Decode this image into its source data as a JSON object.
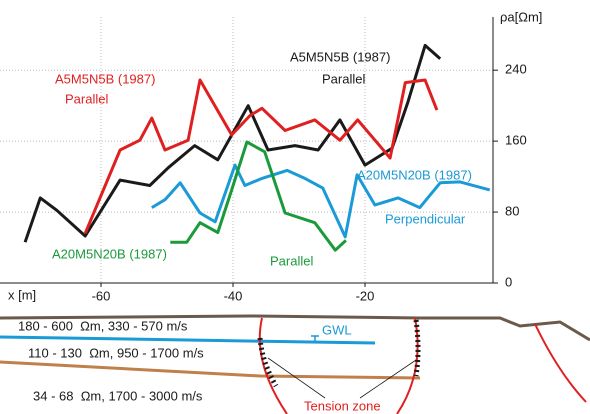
{
  "chart_data": {
    "type": "line",
    "x_label": "x [m]",
    "y_label": "ρa[Ωm]",
    "xlim": [
      -75,
      0
    ],
    "xticks": [
      -60,
      -40,
      -20
    ],
    "ylim": [
      0,
      300
    ],
    "yticks": [
      0,
      80,
      160,
      240
    ],
    "grid": true,
    "series": [
      {
        "name": "A5M5N5B (1987)",
        "note": "Parallel",
        "color": "#1a1a1a",
        "x": [
          -71.5,
          -69.2,
          -66.7,
          -62.4,
          -57.1,
          -52.6,
          -49.8,
          -45.8,
          -42.3,
          -37.7,
          -34.7,
          -30.6,
          -27.1,
          -23.8,
          -20,
          -15.9,
          -13.5,
          -10.9,
          -8.6
        ],
        "values": [
          46,
          96,
          82,
          53,
          116,
          110,
          130,
          155,
          139,
          200,
          150,
          155,
          150,
          184,
          133,
          152,
          204,
          268,
          253
        ]
      },
      {
        "name": "A5M5N5B (1987)",
        "note": "Parallel",
        "color": "#e02020",
        "x": [
          -62.4,
          -57.1,
          -54.1,
          -52.3,
          -50.3,
          -46.8,
          -45,
          -40.2,
          -37.4,
          -35.6,
          -32.1,
          -27.6,
          -23.8,
          -21.1,
          -16.2,
          -13.9,
          -10.9,
          -9.1
        ],
        "values": [
          56,
          150,
          161,
          186,
          150,
          161,
          229,
          167,
          189,
          197,
          172,
          184,
          161,
          184,
          141,
          226,
          229,
          195
        ]
      },
      {
        "name": "A20M5N20B (1987)",
        "note": "Perpendicular",
        "color": "#1a9ad6",
        "x": [
          -52.3,
          -50.3,
          -48,
          -45,
          -42.7,
          -39.7,
          -38.2,
          -35.6,
          -31.8,
          -29.1,
          -26.4,
          -23,
          -21.2,
          -18.5,
          -15,
          -11.7,
          -8.6,
          -5.6,
          -1.1
        ],
        "values": [
          85,
          94,
          113,
          79,
          69,
          133,
          110,
          118,
          127,
          118,
          107,
          52,
          122,
          88,
          96,
          85,
          113,
          114,
          105
        ]
      },
      {
        "name": "A20M5N20B (1987)",
        "note": "Parallel",
        "color": "#1a9a3a",
        "x": [
          -49.5,
          -47,
          -45,
          -42.3,
          -40.2,
          -37.9,
          -35.2,
          -32.1,
          -27.6,
          -24.5,
          -22.9
        ],
        "values": [
          46,
          46,
          68,
          57,
          105,
          159,
          148,
          79,
          68,
          37,
          48
        ]
      }
    ]
  },
  "section": {
    "layers": [
      "180 - 600  Ωm, 330 - 570 m/s",
      "110 - 130  Ωm, 950 - 1700 m/s",
      "34 - 68  Ωm, 1700 - 3000 m/s"
    ],
    "gwl": "GWL",
    "tension_zone": "Tension zone"
  }
}
